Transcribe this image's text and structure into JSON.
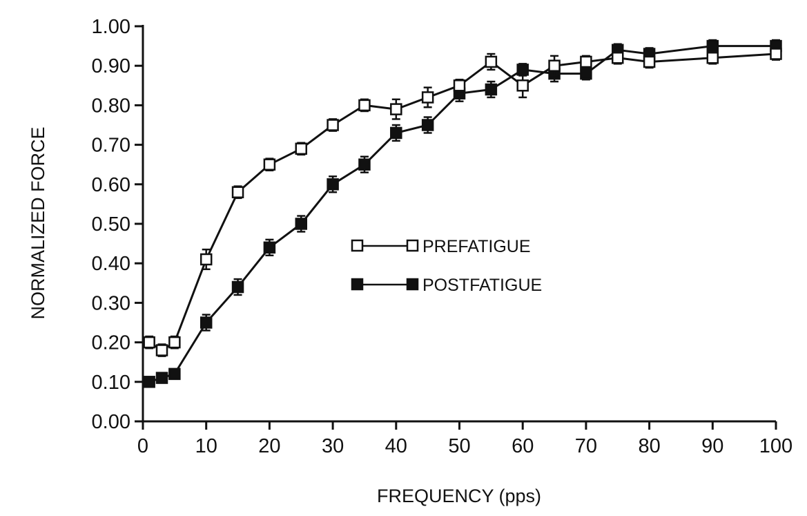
{
  "chart_data": {
    "type": "line",
    "title": "",
    "xlabel": "FREQUENCY (pps)",
    "ylabel": "NORMALIZED FORCE",
    "xlim": [
      0,
      100
    ],
    "ylim": [
      0,
      1.0
    ],
    "x_ticks": [
      "0",
      "10",
      "20",
      "30",
      "40",
      "50",
      "60",
      "70",
      "80",
      "90",
      "100"
    ],
    "y_ticks": [
      "0.00",
      "0.10",
      "0.20",
      "0.30",
      "0.40",
      "0.50",
      "0.60",
      "0.70",
      "0.80",
      "0.90",
      "1.00"
    ],
    "grid": false,
    "legend_position": "center-right",
    "series": [
      {
        "name": "PREFATIGUE",
        "marker": "open-square",
        "color": "#111111",
        "x": [
          1,
          3,
          5,
          10,
          15,
          20,
          25,
          30,
          35,
          40,
          45,
          50,
          55,
          60,
          65,
          70,
          75,
          80,
          90,
          100
        ],
        "y": [
          0.2,
          0.18,
          0.2,
          0.41,
          0.58,
          0.65,
          0.69,
          0.75,
          0.8,
          0.79,
          0.82,
          0.85,
          0.91,
          0.85,
          0.9,
          0.91,
          0.92,
          0.91,
          0.92,
          0.93
        ],
        "err": [
          0.015,
          0.015,
          0.015,
          0.025,
          0.015,
          0.015,
          0.015,
          0.015,
          0.015,
          0.025,
          0.025,
          0.015,
          0.02,
          0.03,
          0.025,
          0.015,
          0.015,
          0.015,
          0.015,
          0.015
        ]
      },
      {
        "name": "POSTFATIGUE",
        "marker": "filled-square",
        "color": "#111111",
        "x": [
          1,
          3,
          5,
          10,
          15,
          20,
          25,
          30,
          35,
          40,
          45,
          50,
          55,
          60,
          65,
          70,
          75,
          80,
          90,
          100
        ],
        "y": [
          0.1,
          0.11,
          0.12,
          0.25,
          0.34,
          0.44,
          0.5,
          0.6,
          0.65,
          0.73,
          0.75,
          0.83,
          0.84,
          0.89,
          0.88,
          0.88,
          0.94,
          0.93,
          0.95,
          0.95
        ],
        "err": [
          0.008,
          0.008,
          0.008,
          0.02,
          0.02,
          0.02,
          0.02,
          0.02,
          0.02,
          0.02,
          0.02,
          0.02,
          0.02,
          0.015,
          0.02,
          0.015,
          0.015,
          0.015,
          0.015,
          0.015
        ]
      }
    ]
  }
}
